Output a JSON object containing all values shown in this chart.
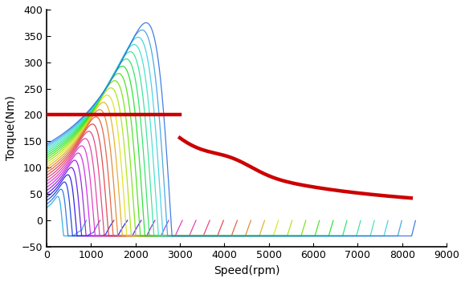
{
  "xlabel": "Speed(rpm)",
  "ylabel": "Torque(Nm)",
  "xlim": [
    0,
    9000
  ],
  "ylim": [
    -50,
    400
  ],
  "xticks": [
    0,
    1000,
    2000,
    3000,
    4000,
    5000,
    6000,
    7000,
    8000,
    9000
  ],
  "yticks": [
    -50,
    0,
    50,
    100,
    150,
    200,
    250,
    300,
    350,
    400
  ],
  "envelope_color": "#cc0000",
  "envelope_linewidth": 3.2,
  "envelope_flat_torque": 200,
  "envelope_flat_end_rpm": 3000,
  "envelope_end_rpm": 8200,
  "envelope_end_torque": 42,
  "num_curves": 25,
  "background_color": "#ffffff",
  "figsize": [
    5.79,
    3.52
  ],
  "dpi": 100
}
